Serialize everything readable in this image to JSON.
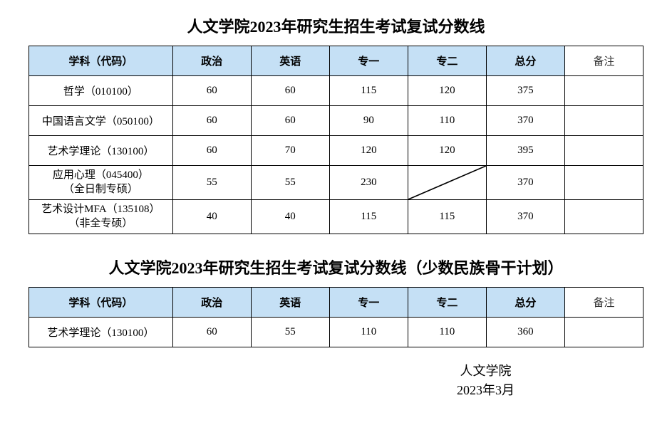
{
  "table1": {
    "title": "人文学院2023年研究生招生考试复试分数线",
    "headers": {
      "subject": "学科（代码）",
      "politics": "政治",
      "english": "英语",
      "sub1": "专一",
      "sub2": "专二",
      "total": "总分",
      "remark": "备注"
    },
    "rows": [
      {
        "subject": "哲学（010100）",
        "politics": "60",
        "english": "60",
        "sub1": "115",
        "sub2": "120",
        "total": "375",
        "remark": "",
        "diagonal": false,
        "multiline": false
      },
      {
        "subject": "中国语言文学（050100）",
        "politics": "60",
        "english": "60",
        "sub1": "90",
        "sub2": "110",
        "total": "370",
        "remark": "",
        "diagonal": false,
        "multiline": false
      },
      {
        "subject": "艺术学理论（130100）",
        "politics": "60",
        "english": "70",
        "sub1": "120",
        "sub2": "120",
        "total": "395",
        "remark": "",
        "diagonal": false,
        "multiline": false
      },
      {
        "subject_line1": "应用心理（045400）",
        "subject_line2": "（全日制专硕）",
        "politics": "55",
        "english": "55",
        "sub1": "230",
        "sub2": "",
        "total": "370",
        "remark": "",
        "diagonal": true,
        "multiline": true
      },
      {
        "subject_line1": "艺术设计MFA（135108）",
        "subject_line2": "（非全专硕）",
        "politics": "40",
        "english": "40",
        "sub1": "115",
        "sub2": "115",
        "total": "370",
        "remark": "",
        "diagonal": false,
        "multiline": true
      }
    ]
  },
  "table2": {
    "title": "人文学院2023年研究生招生考试复试分数线（少数民族骨干计划）",
    "headers": {
      "subject": "学科（代码）",
      "politics": "政治",
      "english": "英语",
      "sub1": "专一",
      "sub2": "专二",
      "total": "总分",
      "remark": "备注"
    },
    "rows": [
      {
        "subject": "艺术学理论（130100）",
        "politics": "60",
        "english": "55",
        "sub1": "110",
        "sub2": "110",
        "total": "360",
        "remark": "",
        "diagonal": false,
        "multiline": false
      }
    ]
  },
  "signature": {
    "line1": "人文学院",
    "line2": "2023年3月"
  },
  "colors": {
    "header_bg": "#c5e0f5",
    "border": "#000000",
    "text": "#000000",
    "background": "#ffffff"
  }
}
